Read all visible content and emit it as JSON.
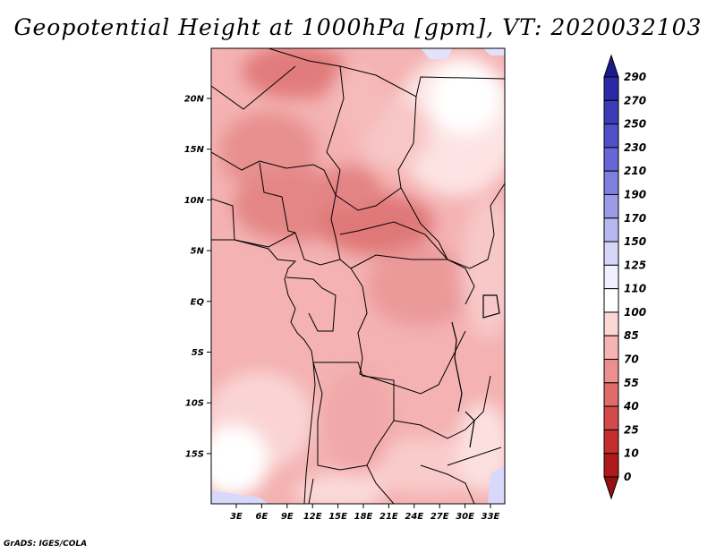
{
  "title": "Geopotential Height at 1000hPa [gpm], VT: 2020032103",
  "credit": "GrADS: IGES/COLA",
  "lat_labels": [
    "20N",
    "15N",
    "10N",
    "5N",
    "EQ",
    "5S",
    "10S",
    "15S"
  ],
  "lon_labels": [
    "3E",
    "6E",
    "9E",
    "12E",
    "15E",
    "18E",
    "21E",
    "24E",
    "27E",
    "30E",
    "33E"
  ],
  "colorbar": {
    "labels": [
      "290",
      "270",
      "250",
      "230",
      "210",
      "190",
      "170",
      "150",
      "125",
      "110",
      "100",
      "85",
      "70",
      "55",
      "40",
      "25",
      "10",
      "0"
    ],
    "colors": [
      "#1a1a8c",
      "#2a2aa6",
      "#3c3cb8",
      "#5050c8",
      "#6666d6",
      "#7f7fe0",
      "#9b9be8",
      "#b8b8f0",
      "#d6d6f8",
      "#f0f0ff",
      "#ffffff",
      "#fdd6d6",
      "#f5b3b3",
      "#eb8f8f",
      "#e06b6b",
      "#d44a4a",
      "#c42e2e",
      "#b01a1a",
      "#951010"
    ]
  }
}
